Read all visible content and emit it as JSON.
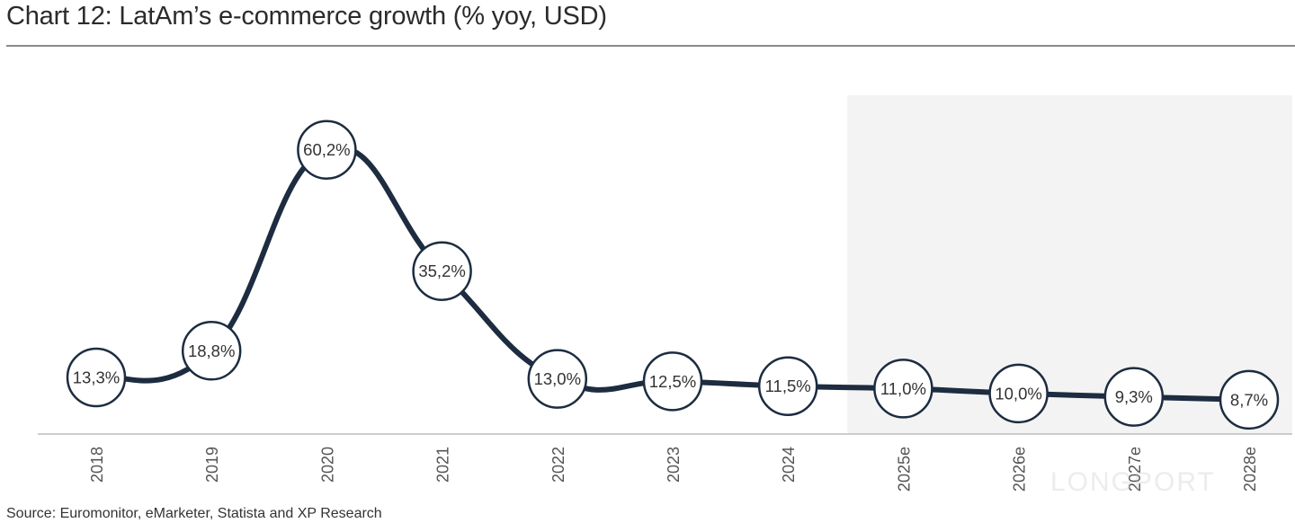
{
  "title": "Chart 12: LatAm’s e-commerce growth (% yoy, USD)",
  "source": "Source: Euromonitor, eMarketer, Statista and XP Research",
  "watermark": "LONGPORT",
  "colors": {
    "line": "#1d2c40",
    "marker_fill": "#ffffff",
    "marker_stroke": "#1d2c40",
    "forecast_shade": "#f3f3f3",
    "axis": "#bdbdbd",
    "label_text": "#333333",
    "tick_text": "#555555"
  },
  "chart_data": {
    "type": "line",
    "title": "Chart 12: LatAm’s e-commerce growth (% yoy, USD)",
    "categories": [
      "2018",
      "2019",
      "2020",
      "2021",
      "2022",
      "2023",
      "2024",
      "2025e",
      "2026e",
      "2027e",
      "2028e"
    ],
    "values": [
      13.3,
      18.8,
      60.2,
      35.2,
      13.0,
      12.5,
      11.5,
      11.0,
      10.0,
      9.3,
      8.7
    ],
    "data_labels": [
      "13,3%",
      "18,8%",
      "60,2%",
      "35,2%",
      "13,0%",
      "12,5%",
      "11,5%",
      "11,0%",
      "10,0%",
      "9,3%",
      "8,7%"
    ],
    "forecast_categories": [
      "2025e",
      "2026e",
      "2027e",
      "2028e"
    ],
    "xlabel": "",
    "ylabel": "",
    "grid": false,
    "legend": "none",
    "smooth": true,
    "tick_label_rotation": -90
  }
}
